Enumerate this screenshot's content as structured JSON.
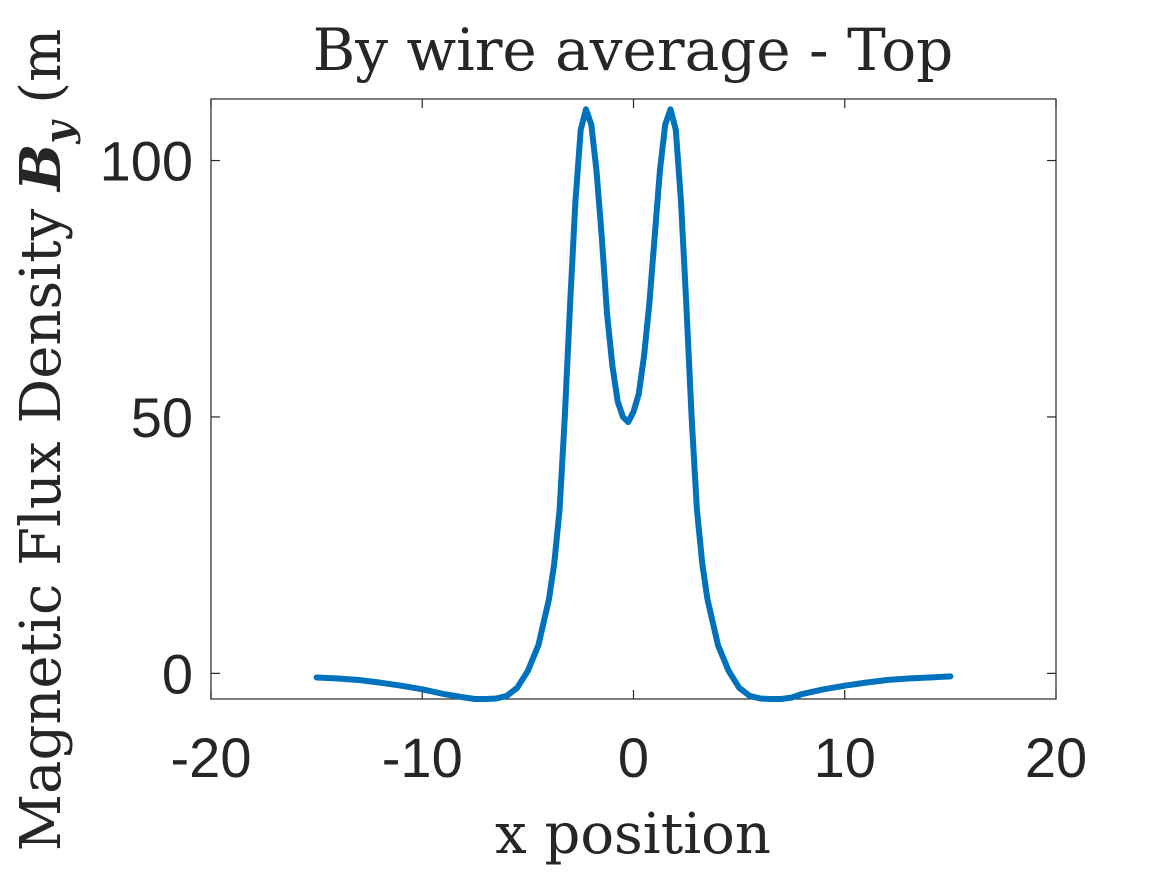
{
  "chart_data": {
    "type": "line",
    "title": "By wire average - Top",
    "xlabel": "x position",
    "ylabel": "Magnetic Flux Density ",
    "ylabel_symbol": "B",
    "ylabel_subscript": "y",
    "ylabel_unit": " (m",
    "xlim": [
      -20,
      20
    ],
    "ylim": [
      -5,
      112
    ],
    "xticks": [
      -20,
      -10,
      0,
      10,
      20
    ],
    "xtick_labels": [
      "-20",
      "-10",
      "0",
      "10",
      "20"
    ],
    "yticks": [
      0,
      50,
      100
    ],
    "ytick_labels": [
      "0",
      "50",
      "100"
    ],
    "grid": false,
    "series_color": "#0072BD",
    "series": [
      {
        "x": [
          -15,
          -14,
          -13,
          -12,
          -11,
          -10,
          -9,
          -8,
          -7.5,
          -7,
          -6.5,
          -6,
          -5.5,
          -5,
          -4.5,
          -4,
          -3.75,
          -3.5,
          -3.25,
          -3,
          -2.75,
          -2.5,
          -2.25,
          -2,
          -1.75,
          -1.5,
          -1.25,
          -1,
          -0.75,
          -0.5,
          -0.25,
          0,
          0.25,
          0.5,
          0.75,
          1,
          1.25,
          1.5,
          1.75,
          2,
          2.25,
          2.5,
          2.75,
          3,
          3.25,
          3.5,
          3.75,
          4,
          4.5,
          5,
          5.5,
          6,
          6.5,
          7,
          7.5,
          8,
          9,
          10,
          11,
          12,
          13,
          14,
          15
        ],
        "y": [
          -0.8,
          -1.0,
          -1.3,
          -1.8,
          -2.4,
          -3.1,
          -4.0,
          -4.7,
          -5.0,
          -5.0,
          -4.9,
          -4.4,
          -2.8,
          0.5,
          5.5,
          14.5,
          21.5,
          32.0,
          50.0,
          72.0,
          92.0,
          106.0,
          110.0,
          107.0,
          98.0,
          85.0,
          70.0,
          60.0,
          53.0,
          50.0,
          49.0,
          51.0,
          54.5,
          62.0,
          72.0,
          85.0,
          98.0,
          107.0,
          110.0,
          106.0,
          92.0,
          72.0,
          50.0,
          32.0,
          21.5,
          14.5,
          10.0,
          5.5,
          0.5,
          -2.8,
          -4.4,
          -4.9,
          -5.0,
          -5.0,
          -4.7,
          -4.0,
          -3.1,
          -2.4,
          -1.8,
          -1.3,
          -1.0,
          -0.8,
          -0.6
        ]
      }
    ]
  }
}
